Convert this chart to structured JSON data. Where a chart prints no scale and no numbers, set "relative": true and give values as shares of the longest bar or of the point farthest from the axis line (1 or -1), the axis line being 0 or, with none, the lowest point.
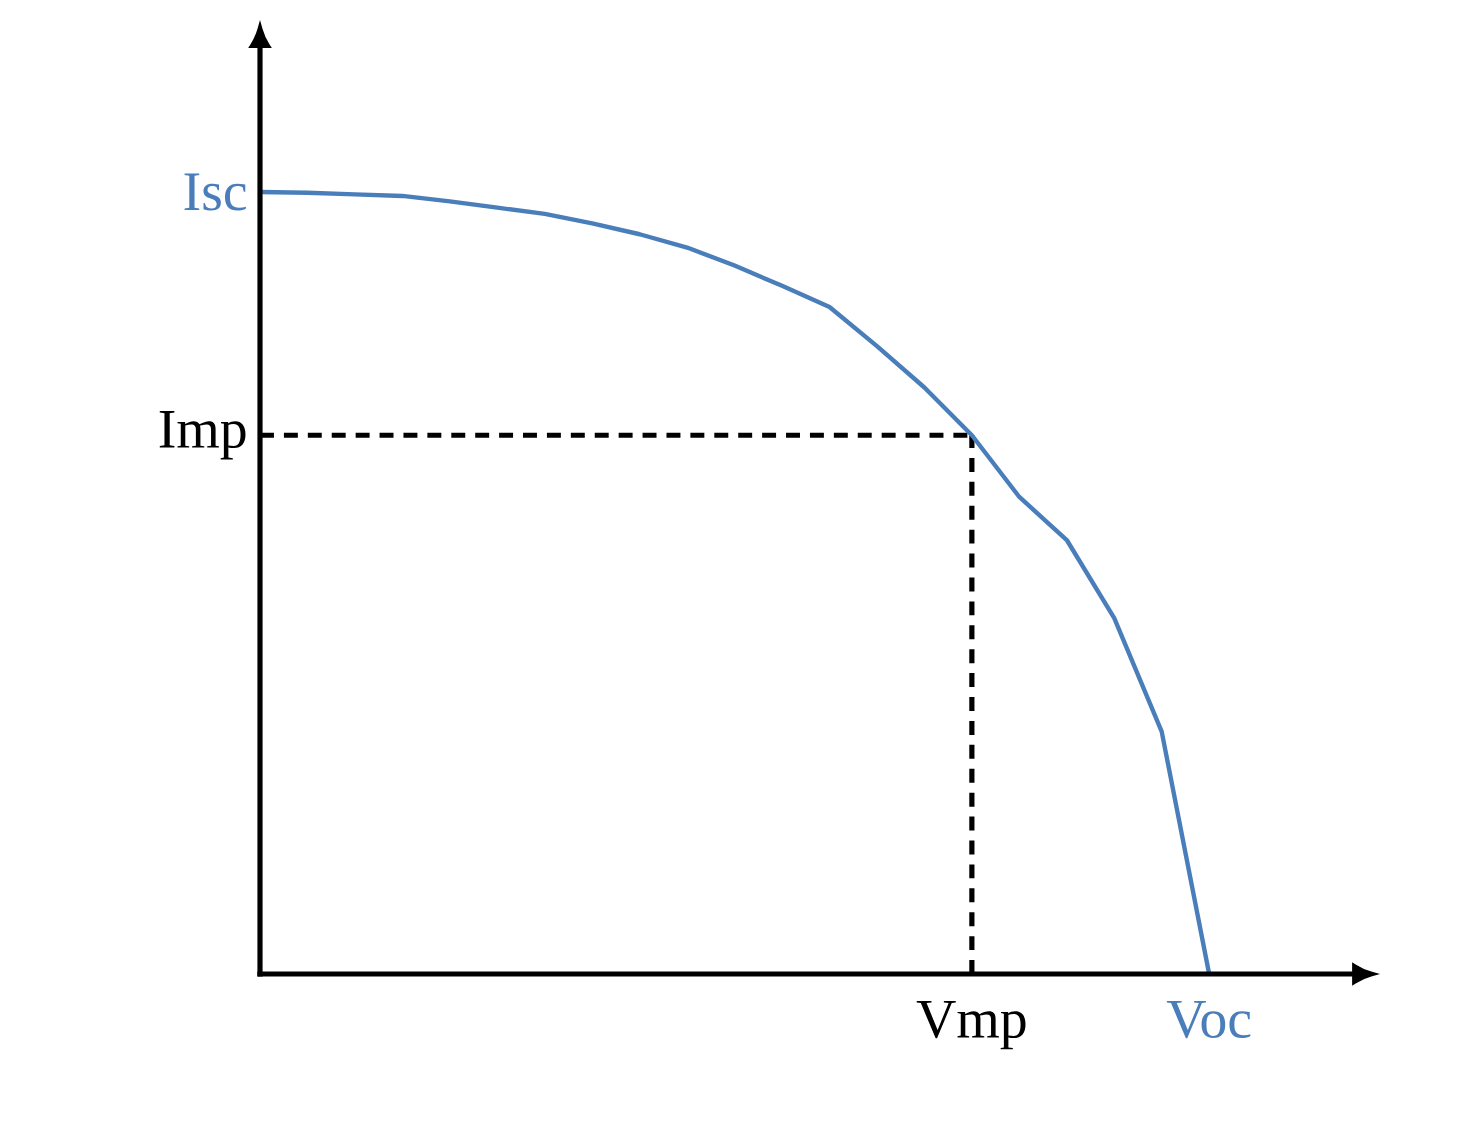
{
  "chart_data": {
    "type": "line",
    "relative": true,
    "categories": [
      null,
      null,
      null,
      null,
      null,
      null,
      null,
      null,
      null,
      null,
      null,
      null,
      null,
      null,
      null,
      "Vmp",
      null,
      null,
      null,
      null,
      "Voc"
    ],
    "annotations": [
      "Isc"
    ],
    "ref_lines": [
      {
        "axis": "y",
        "value": 0.689,
        "label": "Imp",
        "color": "#000000",
        "line_style": "dashed"
      },
      {
        "axis": "x",
        "value": "Vmp",
        "color": "#000000",
        "line_style": "dashed"
      }
    ],
    "series": [
      {
        "color": "#4a7ebb",
        "values": [
          1,
          0.999,
          0.997,
          0.995,
          0.988,
          0.98,
          0.972,
          0.96,
          0.946,
          0.929,
          0.906,
          0.88,
          0.853,
          0.803,
          0.75,
          0.689,
          0.61,
          0.555,
          0.455,
          0.31,
          0
        ]
      }
    ]
  }
}
